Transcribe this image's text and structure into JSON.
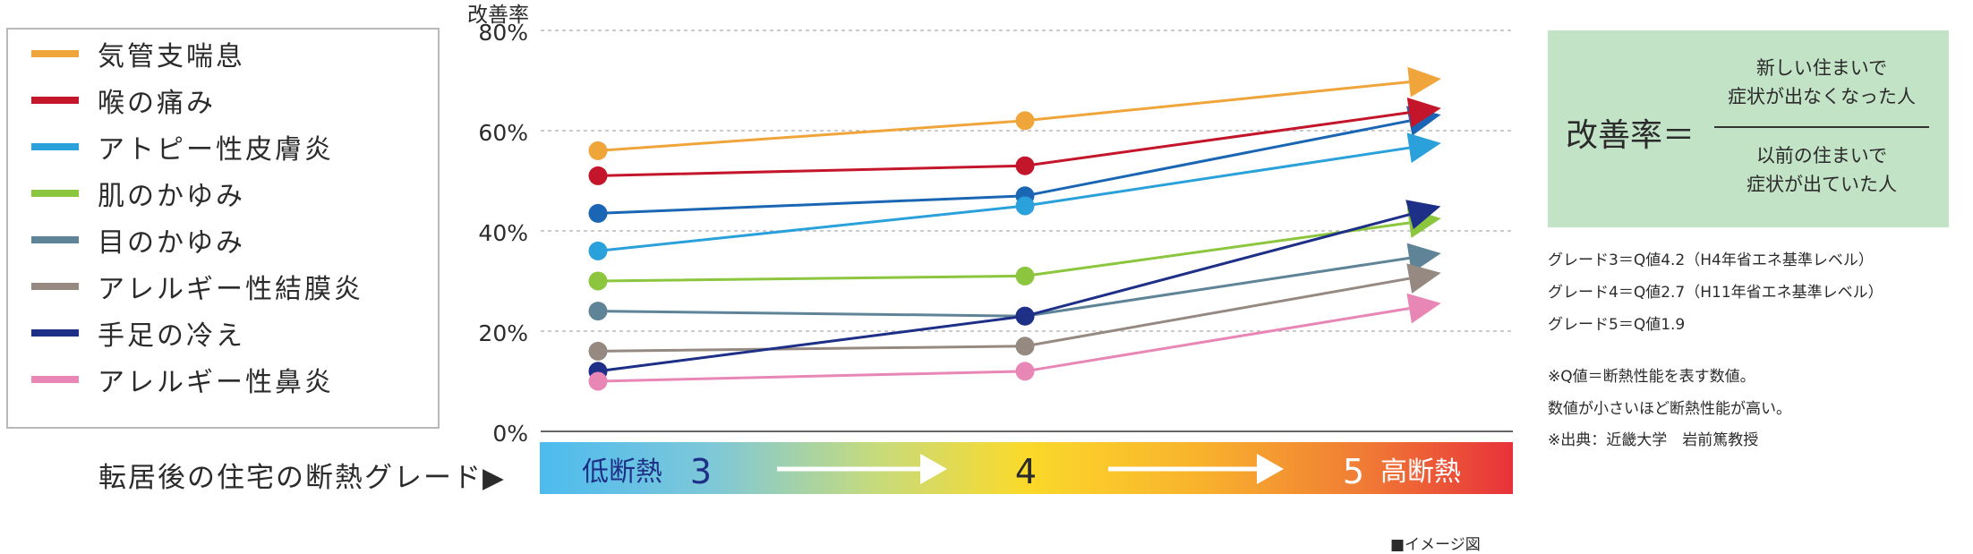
{
  "chart_data": {
    "type": "line",
    "ylabel": "改善率",
    "ylim": [
      0,
      80
    ],
    "yticks": [
      "0%",
      "20%",
      "40%",
      "60%",
      "80%"
    ],
    "grid": true,
    "legend_position": "left",
    "x_axis_caption": "転居後の住宅の断熱グレード▶",
    "categories": [
      "3",
      "4",
      "5"
    ],
    "category_extras": {
      "low": "低断熱",
      "high": "高断熱"
    },
    "series": [
      {
        "name": "気管支喘息",
        "color": "#f0a53b",
        "values": [
          56,
          62,
          70
        ]
      },
      {
        "name": "喉の痛み",
        "color": "#c4162a",
        "values": [
          51,
          53,
          64
        ]
      },
      {
        "name": "アトピー性皮膚炎",
        "color": "#2aa1da",
        "values": [
          36,
          45,
          57
        ]
      },
      {
        "name": "肌のかゆみ",
        "color": "#8cc63f",
        "values": [
          30,
          31,
          42
        ]
      },
      {
        "name": "目のかゆみ",
        "color": "#5f8497",
        "values": [
          24,
          23,
          35
        ]
      },
      {
        "name": "アレルギー性結膜炎",
        "color": "#958981",
        "values": [
          16,
          17,
          31
        ]
      },
      {
        "name": "手足の冷え",
        "color": "#1d2f86",
        "values": [
          12,
          23,
          44
        ]
      },
      {
        "name": "アレルギー性鼻炎",
        "color": "#e887b5",
        "values": [
          10,
          12,
          25
        ]
      }
    ],
    "extra_series": {
      "name": "",
      "color": "#1a66b4",
      "values": [
        43.5,
        47,
        62.5
      ]
    }
  },
  "formula": {
    "lhs": "改善率＝",
    "numerator": [
      "新しい住まいで",
      "症状が出なくなった人"
    ],
    "denominator": [
      "以前の住まいで",
      "症状が出ていた人"
    ]
  },
  "notes": [
    "グレード3＝Q値4.2（H4年省エネ基準レベル）",
    "グレード4＝Q値2.7（H11年省エネ基準レベル）",
    "グレード5＝Q値1.9",
    "※Q値＝断熱性能を表す数値。",
    "数値が小さいほど断熱性能が高い。",
    "※出典：近畿大学　岩前篤教授"
  ],
  "image_note": "■イメージ図"
}
